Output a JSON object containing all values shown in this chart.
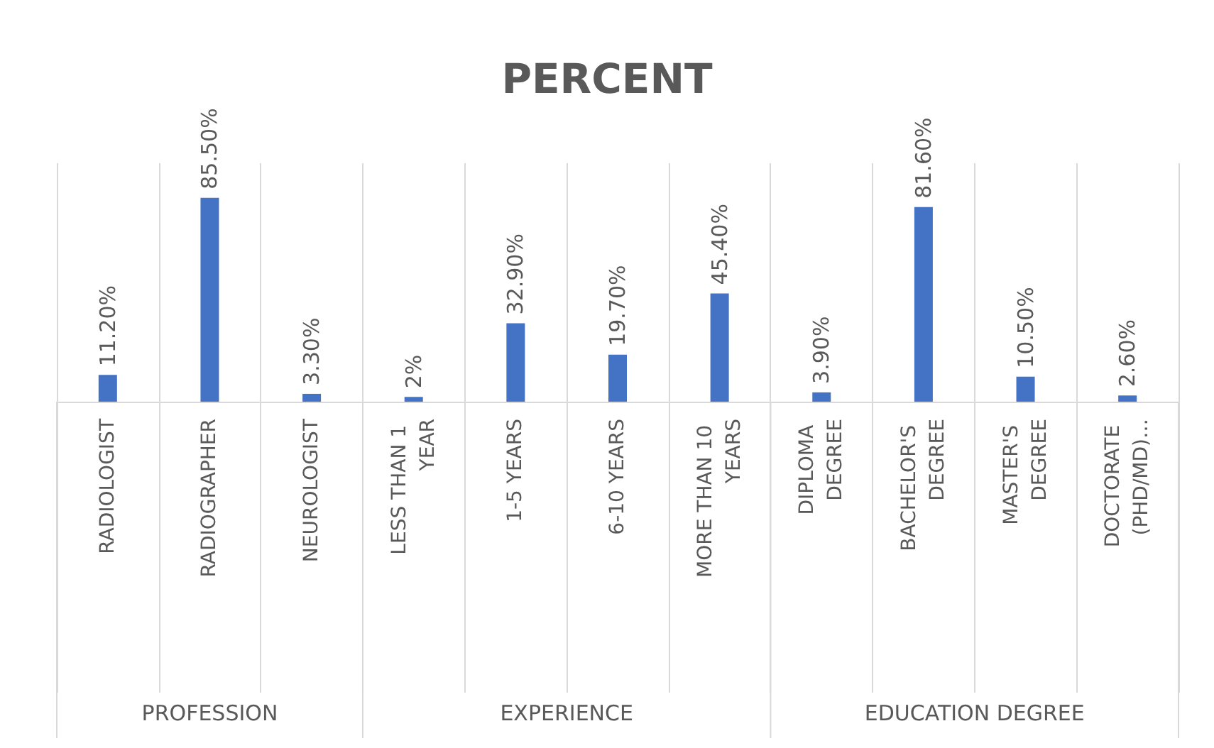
{
  "chart_data": {
    "type": "bar",
    "title": "PERCENT",
    "categories": [
      "RADIOLOGIST",
      "RADIOGRAPHER",
      "NEUROLOGIST",
      "LESS THAN 1 YEAR",
      "1-5 YEARS",
      "6-10 YEARS",
      "MORE THAN 10 YEARS",
      "DIPLOMA DEGREE",
      "BACHELOR'S DEGREE",
      "MASTER'S DEGREE",
      "DOCTORATE (PHD/MD)…"
    ],
    "values": [
      11.2,
      85.5,
      3.3,
      2,
      32.9,
      19.7,
      45.4,
      3.9,
      81.6,
      10.5,
      2.6
    ],
    "value_labels": [
      "11.20%",
      "85.50%",
      "3.30%",
      "2%",
      "32.90%",
      "19.70%",
      "45.40%",
      "3.90%",
      "81.60%",
      "10.50%",
      "2.60%"
    ],
    "color": "#4472c4",
    "grid": "x",
    "annotations": [
      "PROFESSION",
      "EXPERIENCE",
      "EDUCATION DEGREE"
    ]
  }
}
